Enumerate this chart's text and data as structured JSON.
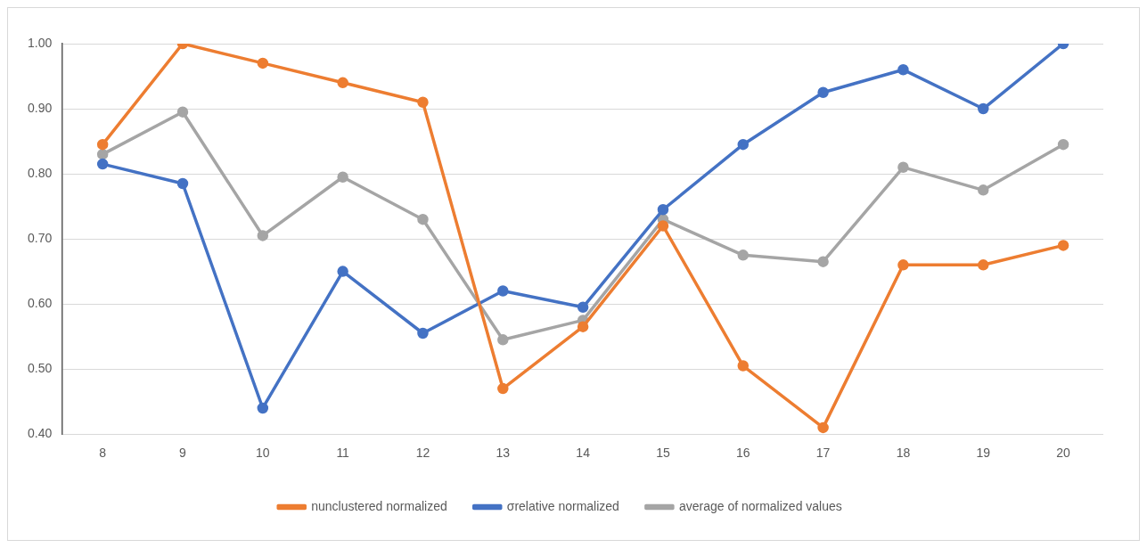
{
  "chart_data": {
    "type": "line",
    "categories": [
      "8",
      "9",
      "10",
      "11",
      "12",
      "13",
      "14",
      "15",
      "16",
      "17",
      "18",
      "19",
      "20"
    ],
    "series": [
      {
        "name": "nunclustered normalized",
        "color": "#ed7d31",
        "values": [
          0.845,
          1.0,
          0.97,
          0.94,
          0.91,
          0.47,
          0.565,
          0.72,
          0.505,
          0.41,
          0.66,
          0.66,
          0.69
        ]
      },
      {
        "name": "σrelative normalized",
        "color": "#4472c4",
        "values": [
          0.815,
          0.785,
          0.44,
          0.65,
          0.555,
          0.62,
          0.595,
          0.745,
          0.845,
          0.925,
          0.96,
          0.9,
          1.0
        ]
      },
      {
        "name": "average of normalized values",
        "color": "#a5a5a5",
        "values": [
          0.83,
          0.895,
          0.705,
          0.795,
          0.73,
          0.545,
          0.575,
          0.73,
          0.675,
          0.665,
          0.81,
          0.775,
          0.845
        ]
      }
    ],
    "ylim": [
      0.4,
      1.0
    ],
    "yticks": [
      {
        "value": 0.4,
        "label": "0.40"
      },
      {
        "value": 0.5,
        "label": "0.50"
      },
      {
        "value": 0.6,
        "label": "0.60"
      },
      {
        "value": 0.7,
        "label": "0.70"
      },
      {
        "value": 0.8,
        "label": "0.80"
      },
      {
        "value": 0.9,
        "label": "0.90"
      },
      {
        "value": 1.0,
        "label": "1.00"
      }
    ],
    "grid": "y",
    "legend": "bottom",
    "marker": "circle",
    "line_style": "solid"
  }
}
